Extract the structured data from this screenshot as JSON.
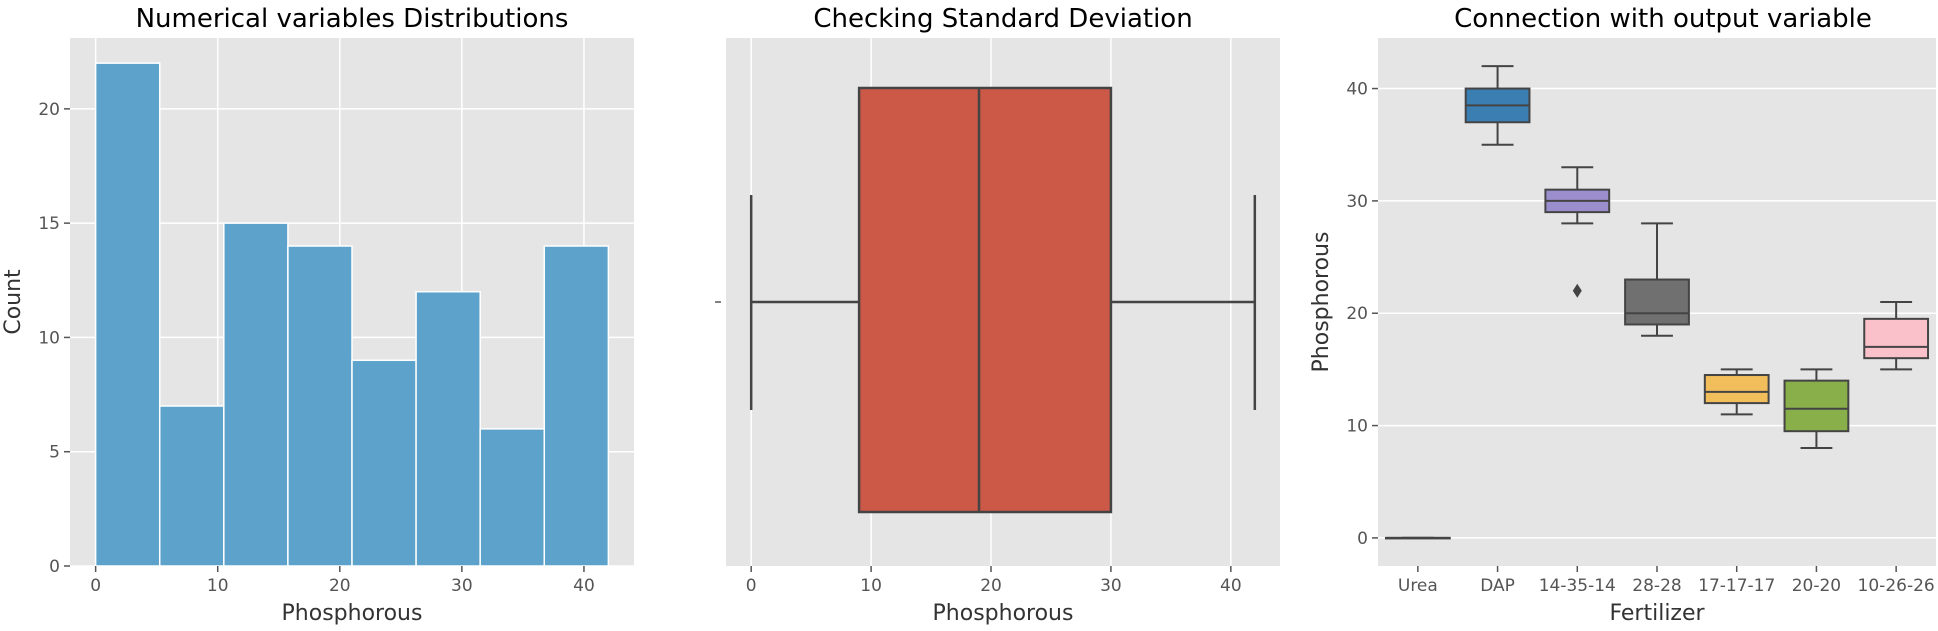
{
  "colors": {
    "plot_background": "#e5e5e5",
    "grid": "#ffffff",
    "hist_bar": "#5da2cb",
    "hist_edge": "#ffffff",
    "box_main": "#cc5847",
    "line": "#444444"
  },
  "chart_data": [
    {
      "type": "bar",
      "title": "Numerical variables Distributions",
      "xlabel": "Phosphorous",
      "ylabel": "Count",
      "xlim": [
        -2.1,
        44.1
      ],
      "ylim": [
        0,
        23.1
      ],
      "xticks": [
        0,
        10,
        20,
        30,
        40
      ],
      "yticks": [
        0,
        5,
        10,
        15,
        20
      ],
      "bins": [
        {
          "x0": 0,
          "x1": 5.25,
          "value": 22
        },
        {
          "x0": 5.25,
          "x1": 10.5,
          "value": 7
        },
        {
          "x0": 10.5,
          "x1": 15.75,
          "value": 15
        },
        {
          "x0": 15.75,
          "x1": 21,
          "value": 14
        },
        {
          "x0": 21,
          "x1": 26.25,
          "value": 9
        },
        {
          "x0": 26.25,
          "x1": 31.5,
          "value": 12
        },
        {
          "x0": 31.5,
          "x1": 36.75,
          "value": 6
        },
        {
          "x0": 36.75,
          "x1": 42,
          "value": 14
        }
      ]
    },
    {
      "type": "box",
      "title": "Checking Standard Deviation",
      "xlabel": "Phosphorous",
      "ylabel": "",
      "xlim": [
        -2.1,
        44.1
      ],
      "xticks": [
        0,
        10,
        20,
        30,
        40
      ],
      "box": {
        "min": 0,
        "q1": 9,
        "median": 19,
        "q3": 30,
        "max": 42,
        "color": "#cc5847"
      }
    },
    {
      "type": "box",
      "title": "Connection with output variable",
      "xlabel": "Fertilizer",
      "ylabel": "Phosphorous",
      "ylim": [
        -2.5,
        44.5
      ],
      "yticks": [
        0,
        10,
        20,
        30,
        40
      ],
      "categories": [
        "Urea",
        "DAP",
        "14-35-14",
        "28-28",
        "17-17-17",
        "20-20",
        "10-26-26"
      ],
      "boxes": [
        {
          "name": "Urea",
          "min": 0,
          "q1": 0,
          "median": 0,
          "q3": 0,
          "max": 0,
          "outliers": [],
          "color": "#3a7eb2"
        },
        {
          "name": "DAP",
          "min": 35,
          "q1": 37,
          "median": 38.5,
          "q3": 40,
          "max": 42,
          "outliers": [],
          "color": "#3a7eb2"
        },
        {
          "name": "14-35-14",
          "min": 28,
          "q1": 29,
          "median": 30,
          "q3": 31,
          "max": 33,
          "outliers": [
            22
          ],
          "color": "#9b8ecc"
        },
        {
          "name": "28-28",
          "min": 18,
          "q1": 19,
          "median": 20,
          "q3": 23,
          "max": 28,
          "outliers": [],
          "color": "#707070"
        },
        {
          "name": "17-17-17",
          "min": 11,
          "q1": 12,
          "median": 13,
          "q3": 14.5,
          "max": 15,
          "outliers": [],
          "color": "#f2be5c"
        },
        {
          "name": "20-20",
          "min": 8,
          "q1": 9.5,
          "median": 11.5,
          "q3": 14,
          "max": 15,
          "outliers": [],
          "color": "#88af4a"
        },
        {
          "name": "10-26-26",
          "min": 15,
          "q1": 16,
          "median": 17,
          "q3": 19.5,
          "max": 21,
          "outliers": [],
          "color": "#fbc1cb"
        }
      ]
    }
  ]
}
